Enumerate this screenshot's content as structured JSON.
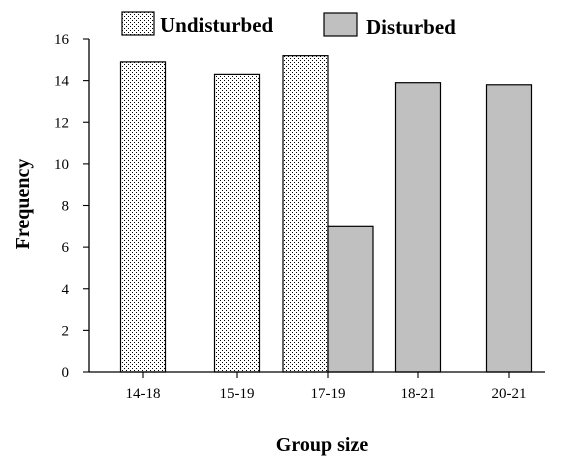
{
  "chart_data": {
    "type": "bar",
    "title": "",
    "xlabel": "Group size",
    "ylabel": "Frequency",
    "ylim": [
      0,
      16
    ],
    "yticks": [
      0,
      2,
      4,
      6,
      8,
      10,
      12,
      14,
      16
    ],
    "categories": [
      "14-18",
      "15-19",
      "17-19",
      "18-21",
      "20-21"
    ],
    "legend_position": "top",
    "grid": false,
    "series": [
      {
        "name": "Undisturbed",
        "fill": "dotted",
        "color": "#ffffff",
        "values": [
          14.9,
          14.3,
          15.2,
          null,
          null
        ]
      },
      {
        "name": "Disturbed",
        "fill": "solid",
        "color": "#c0c0c0",
        "values": [
          null,
          null,
          7.0,
          13.9,
          13.8
        ]
      }
    ]
  }
}
